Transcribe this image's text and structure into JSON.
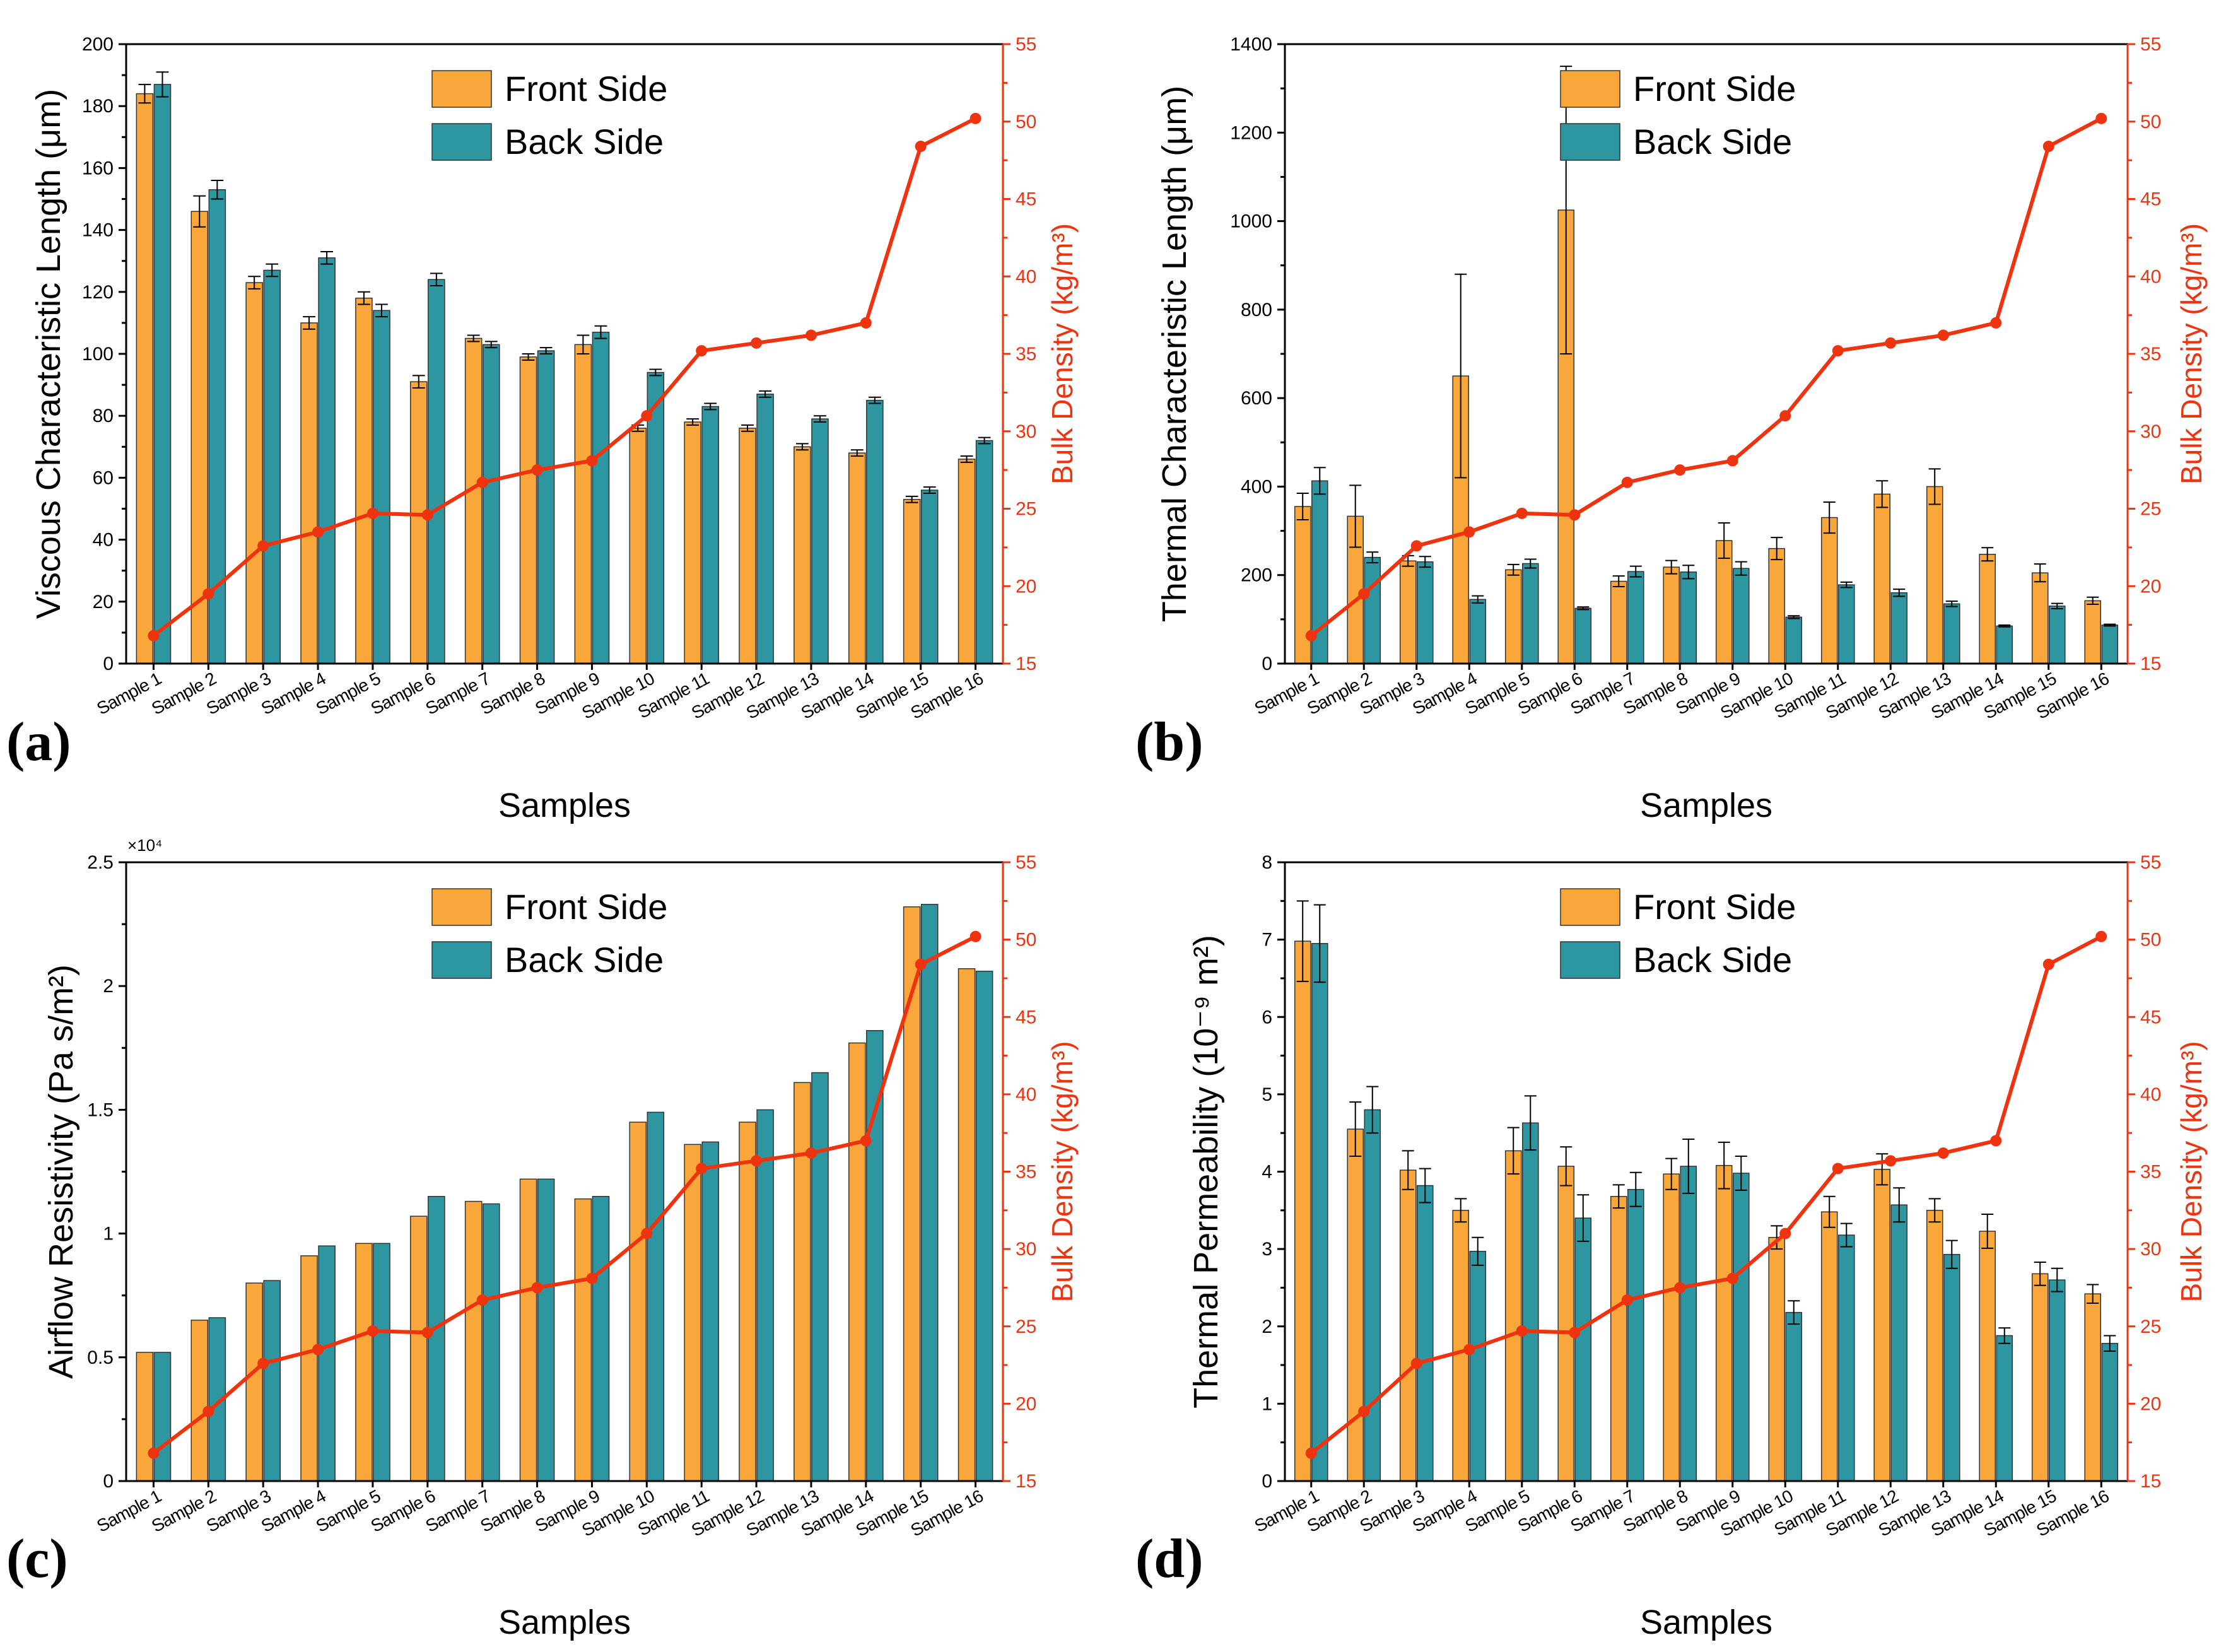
{
  "chart_data": [
    {
      "panel": "(a)",
      "type": "bar",
      "ylabel": "Viscous Characteristic Length (μm)",
      "y2label": "Bulk Density (kg/m³)",
      "xlabel": "Samples",
      "ylim": [
        0,
        200
      ],
      "yticks": [
        0,
        20,
        40,
        60,
        80,
        100,
        120,
        140,
        160,
        180,
        200
      ],
      "y2lim": [
        15,
        55
      ],
      "y2ticks": [
        15,
        20,
        25,
        30,
        35,
        40,
        45,
        50,
        55
      ],
      "categories": [
        "Sample 1",
        "Sample 2",
        "Sample 3",
        "Sample 4",
        "Sample 5",
        "Sample 6",
        "Sample 7",
        "Sample 8",
        "Sample 9",
        "Sample 10",
        "Sample 11",
        "Sample 12",
        "Sample 13",
        "Sample 14",
        "Sample 15",
        "Sample 16"
      ],
      "series": [
        {
          "name": "Front Side",
          "values": [
            184,
            146,
            123,
            110,
            118,
            91,
            105,
            99,
            103,
            76,
            78,
            76,
            70,
            68,
            53,
            66
          ],
          "errors": [
            3,
            5,
            2,
            2,
            2,
            2,
            1,
            1,
            3,
            1,
            1,
            1,
            1,
            1,
            1,
            1
          ]
        },
        {
          "name": "Back Side",
          "values": [
            187,
            153,
            127,
            131,
            114,
            124,
            103,
            101,
            107,
            94,
            83,
            87,
            79,
            85,
            56,
            72
          ],
          "errors": [
            4,
            3,
            2,
            2,
            2,
            2,
            1,
            1,
            2,
            1,
            1,
            1,
            1,
            1,
            1,
            1
          ]
        }
      ],
      "line": {
        "name": "Bulk Density",
        "values": [
          16.8,
          19.5,
          22.6,
          23.5,
          24.7,
          24.6,
          26.7,
          27.5,
          28.1,
          31.0,
          35.2,
          35.7,
          36.2,
          37.0,
          48.4,
          50.2
        ]
      },
      "legend": [
        "Front Side",
        "Back Side"
      ]
    },
    {
      "panel": "(b)",
      "type": "bar",
      "ylabel": "Thermal Characteristic Length (μm)",
      "y2label": "Bulk Density (kg/m³)",
      "xlabel": "Samples",
      "ylim": [
        0,
        1400
      ],
      "yticks": [
        0,
        200,
        400,
        600,
        800,
        1000,
        1200,
        1400
      ],
      "y2lim": [
        15,
        55
      ],
      "y2ticks": [
        15,
        20,
        25,
        30,
        35,
        40,
        45,
        50,
        55
      ],
      "categories": [
        "Sample 1",
        "Sample 2",
        "Sample 3",
        "Sample 4",
        "Sample 5",
        "Sample 6",
        "Sample 7",
        "Sample 8",
        "Sample 9",
        "Sample 10",
        "Sample 11",
        "Sample 12",
        "Sample 13",
        "Sample 14",
        "Sample 15",
        "Sample 16"
      ],
      "series": [
        {
          "name": "Front Side",
          "values": [
            355,
            333,
            232,
            650,
            212,
            1025,
            186,
            218,
            278,
            260,
            330,
            383,
            400,
            247,
            205,
            142
          ],
          "errors": [
            30,
            70,
            12,
            230,
            12,
            325,
            12,
            15,
            40,
            25,
            35,
            30,
            40,
            15,
            20,
            8
          ]
        },
        {
          "name": "Back Side",
          "values": [
            413,
            240,
            230,
            145,
            226,
            125,
            208,
            207,
            215,
            105,
            178,
            160,
            135,
            85,
            130,
            87
          ],
          "errors": [
            30,
            12,
            12,
            8,
            10,
            3,
            12,
            15,
            15,
            3,
            6,
            8,
            6,
            2,
            6,
            2
          ]
        }
      ],
      "line": {
        "name": "Bulk Density",
        "values": [
          16.8,
          19.5,
          22.6,
          23.5,
          24.7,
          24.6,
          26.7,
          27.5,
          28.1,
          31.0,
          35.2,
          35.7,
          36.2,
          37.0,
          48.4,
          50.2
        ]
      },
      "legend": [
        "Front Side",
        "Back Side"
      ]
    },
    {
      "panel": "(c)",
      "type": "bar",
      "ylabel": "Airflow Resistivity (Pa s/m²)",
      "y2label": "Bulk Density (kg/m³)",
      "xlabel": "Samples",
      "multiplier": "×10⁴",
      "ylim": [
        0,
        2.5
      ],
      "yticks": [
        0,
        0.5,
        1,
        1.5,
        2,
        2.5
      ],
      "yticklabels": [
        "0",
        "0.5",
        "1",
        "1.5",
        "2",
        "2.5"
      ],
      "y2lim": [
        15,
        55
      ],
      "y2ticks": [
        15,
        20,
        25,
        30,
        35,
        40,
        45,
        50,
        55
      ],
      "categories": [
        "Sample 1",
        "Sample 2",
        "Sample 3",
        "Sample 4",
        "Sample 5",
        "Sample 6",
        "Sample 7",
        "Sample 8",
        "Sample 9",
        "Sample 10",
        "Sample 11",
        "Sample 12",
        "Sample 13",
        "Sample 14",
        "Sample 15",
        "Sample 16"
      ],
      "series": [
        {
          "name": "Front Side",
          "values": [
            0.52,
            0.65,
            0.8,
            0.91,
            0.96,
            1.07,
            1.13,
            1.22,
            1.14,
            1.45,
            1.36,
            1.45,
            1.61,
            1.77,
            2.32,
            2.07
          ]
        },
        {
          "name": "Back Side",
          "values": [
            0.52,
            0.66,
            0.81,
            0.95,
            0.96,
            1.15,
            1.12,
            1.22,
            1.15,
            1.49,
            1.37,
            1.5,
            1.65,
            1.82,
            2.33,
            2.06
          ]
        }
      ],
      "line": {
        "name": "Bulk Density",
        "values": [
          16.8,
          19.5,
          22.6,
          23.5,
          24.7,
          24.6,
          26.7,
          27.5,
          28.1,
          31.0,
          35.2,
          35.7,
          36.2,
          37.0,
          48.4,
          50.2
        ]
      },
      "legend": [
        "Front Side",
        "Back Side"
      ]
    },
    {
      "panel": "(d)",
      "type": "bar",
      "ylabel": "Thermal Permeability (10⁻⁹ m²)",
      "y2label": "Bulk Density (kg/m³)",
      "xlabel": "Samples",
      "ylim": [
        0,
        8
      ],
      "yticks": [
        0,
        1,
        2,
        3,
        4,
        5,
        6,
        7,
        8
      ],
      "y2lim": [
        15,
        55
      ],
      "y2ticks": [
        15,
        20,
        25,
        30,
        35,
        40,
        45,
        50,
        55
      ],
      "categories": [
        "Sample 1",
        "Sample 2",
        "Sample 3",
        "Sample 4",
        "Sample 5",
        "Sample 6",
        "Sample 7",
        "Sample 8",
        "Sample 9",
        "Sample 10",
        "Sample 11",
        "Sample 12",
        "Sample 13",
        "Sample 14",
        "Sample 15",
        "Sample 16"
      ],
      "series": [
        {
          "name": "Front Side",
          "values": [
            6.98,
            4.55,
            4.02,
            3.5,
            4.27,
            4.07,
            3.68,
            3.97,
            4.08,
            3.15,
            3.48,
            4.03,
            3.5,
            3.23,
            2.68,
            2.42
          ],
          "errors": [
            0.52,
            0.35,
            0.25,
            0.15,
            0.3,
            0.25,
            0.15,
            0.2,
            0.3,
            0.15,
            0.2,
            0.2,
            0.15,
            0.22,
            0.15,
            0.12
          ]
        },
        {
          "name": "Back Side",
          "values": [
            6.95,
            4.8,
            3.82,
            2.97,
            4.63,
            3.4,
            3.77,
            4.07,
            3.98,
            2.18,
            3.18,
            3.57,
            2.93,
            1.88,
            2.6,
            1.78
          ],
          "errors": [
            0.5,
            0.3,
            0.22,
            0.18,
            0.35,
            0.3,
            0.22,
            0.35,
            0.22,
            0.15,
            0.15,
            0.22,
            0.18,
            0.1,
            0.15,
            0.1
          ]
        }
      ],
      "line": {
        "name": "Bulk Density",
        "values": [
          16.8,
          19.5,
          22.6,
          23.5,
          24.7,
          24.6,
          26.7,
          27.5,
          28.1,
          31.0,
          35.2,
          35.7,
          36.2,
          37.0,
          48.4,
          50.2
        ]
      },
      "legend": [
        "Front Side",
        "Back Side"
      ]
    }
  ],
  "colors": {
    "front": "#f9a73b",
    "back": "#2e96a0",
    "line": "#ee3311"
  }
}
